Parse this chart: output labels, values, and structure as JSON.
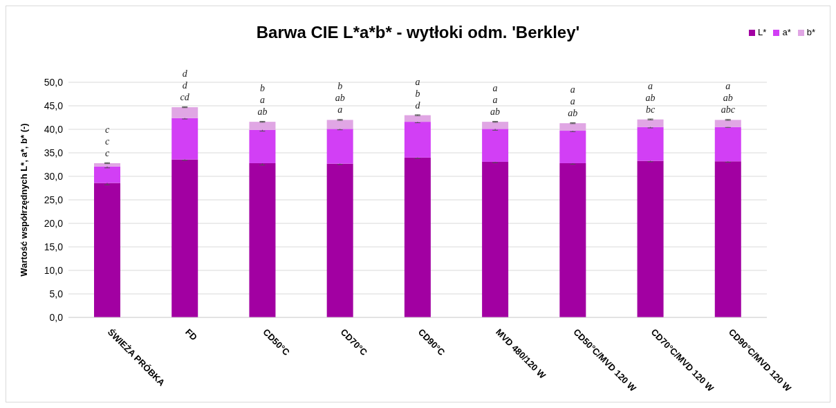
{
  "chart_data": {
    "type": "bar",
    "title": "Barwa CIE L*a*b* - wytłoki odm. 'Berkley'",
    "ylabel": "Wartość współrzędnych L*, a*, b* (-)",
    "categories": [
      "ŚWIEŻA PRÓBKA",
      "FD",
      "CD50°C",
      "CD70°C",
      "CD90°C",
      "MVD 480/120 W",
      "CD50°C/MVD 120 W",
      "CD70°C/MVD 120 W",
      "CD90°C/MVD 120 W"
    ],
    "stacked": true,
    "legend": "top right",
    "grid": "y",
    "ylim": [
      0,
      50
    ],
    "yticks": [
      {
        "value": 0,
        "label": "0,0"
      },
      {
        "value": 5,
        "label": "5,0"
      },
      {
        "value": 10,
        "label": "10,0"
      },
      {
        "value": 15,
        "label": "15,0"
      },
      {
        "value": 20,
        "label": "20,0"
      },
      {
        "value": 25,
        "label": "25,0"
      },
      {
        "value": 30,
        "label": "30,0"
      },
      {
        "value": 35,
        "label": "35,0"
      },
      {
        "value": 40,
        "label": "40,0"
      },
      {
        "value": 45,
        "label": "45,0"
      },
      {
        "value": 50,
        "label": "50,0"
      }
    ],
    "series": [
      {
        "name": "L*",
        "color": "#a200a2",
        "values": [
          28.6,
          33.6,
          32.8,
          32.7,
          34.0,
          33.1,
          32.8,
          33.3,
          33.2
        ],
        "errors": [
          0.4,
          0.2,
          0.4,
          0.2,
          0.2,
          0.2,
          0.2,
          0.2,
          0.2
        ]
      },
      {
        "name": "a*",
        "color": "#d23ff5",
        "values": [
          3.5,
          8.8,
          7.1,
          7.4,
          7.6,
          7.0,
          6.9,
          7.2,
          7.3
        ],
        "errors": [
          0.3,
          0.2,
          0.3,
          0.2,
          0.2,
          0.3,
          0.2,
          0.2,
          0.1
        ]
      },
      {
        "name": "b*",
        "color": "#e0a6e4",
        "values": [
          0.7,
          2.3,
          1.7,
          1.9,
          1.4,
          1.5,
          1.6,
          1.6,
          1.5
        ],
        "errors": [
          0.1,
          0.1,
          0.1,
          0.1,
          0.1,
          0.1,
          0.1,
          0.1,
          0.1
        ]
      }
    ],
    "annotations": [
      "c",
      "c",
      "c",
      "cd",
      "d",
      "d",
      "ab",
      "a",
      "b",
      "a",
      "ab",
      "b",
      "d",
      "b",
      "a",
      "ab",
      "a",
      "a",
      "ab",
      "a",
      "a",
      "bc",
      "ab",
      "a",
      "abc",
      "ab",
      "a"
    ]
  }
}
